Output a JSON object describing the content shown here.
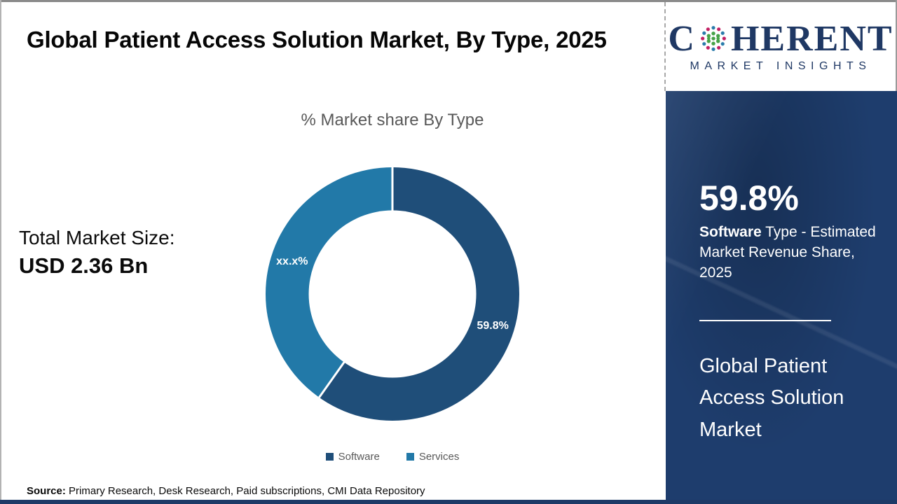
{
  "header": {
    "title": "Global Patient Access Solution Market, By Type, 2025"
  },
  "logo": {
    "brand_start": "C",
    "brand_end": "HERENT",
    "tagline": "MARKET INSIGHTS",
    "brand_color": "#1f3864",
    "globe_colors": {
      "green": "#46a247",
      "teal": "#2b7cab",
      "magenta": "#c21f63"
    }
  },
  "panel": {
    "stat_value": "59.8%",
    "stat_label_bold": "Software",
    "stat_label_rest": " Type - Estimated Market Revenue Share, 2025",
    "market_name": "Global Patient Access Solution Market",
    "background_color": "#1e3d6d"
  },
  "total_market": {
    "label": "Total Market Size:",
    "value": "USD 2.36 Bn"
  },
  "footer": {
    "source_label": "Source:",
    "source_text": " Primary Research, Desk Research, Paid subscriptions, CMI Data Repository"
  },
  "chart_data": {
    "type": "pie",
    "donut": true,
    "title": "% Market share By Type",
    "categories": [
      "Software",
      "Services"
    ],
    "values": [
      59.8,
      40.2
    ],
    "display_labels": [
      "59.8%",
      "xx.x%"
    ],
    "colors": [
      "#1f4e79",
      "#2279a8"
    ],
    "start_angle_deg": 0,
    "direction": "clockwise",
    "hole_ratio": 0.66,
    "legend_position": "bottom",
    "label_text_color": "#ffffff"
  }
}
